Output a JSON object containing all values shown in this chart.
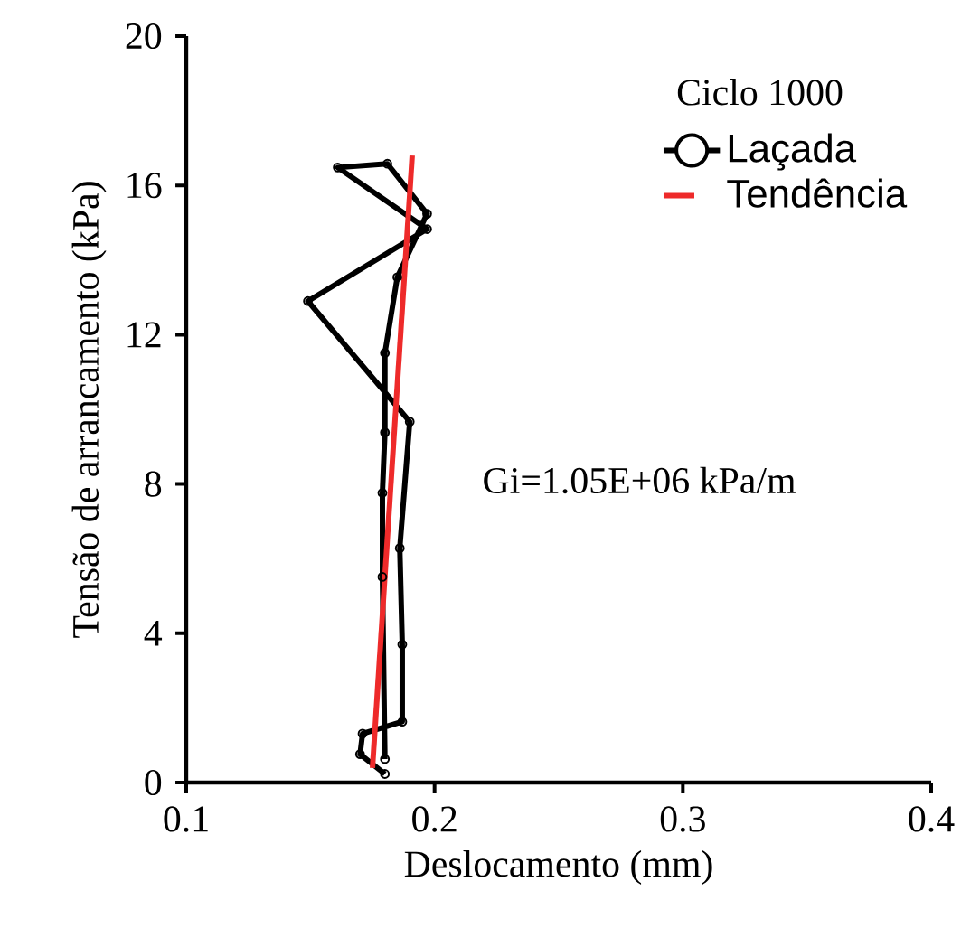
{
  "chart_data": {
    "type": "line",
    "xlabel": "Deslocamento (mm)",
    "ylabel": "Tensão de arrancamento (kPa)",
    "legend_title": "Ciclo 1000",
    "xlim": [
      0.1,
      0.4
    ],
    "xticks": [
      0.1,
      0.2,
      0.3,
      0.4
    ],
    "ylim": [
      0,
      20
    ],
    "yticks": [
      0,
      4,
      8,
      12,
      16,
      20
    ],
    "grid": false,
    "legend": "top right",
    "annotations": [
      "Gi=1.05E+06 kPa/m"
    ],
    "series": [
      {
        "name": "Laçada",
        "color": "#000000",
        "marker": "circle",
        "line_style": "solid",
        "x": [
          0.18,
          0.17,
          0.171,
          0.187,
          0.187,
          0.186,
          0.19,
          0.149,
          0.197,
          0.161,
          0.181,
          0.197,
          0.185,
          0.18,
          0.18,
          0.179,
          0.179,
          0.18
        ],
        "values": [
          0.23,
          0.76,
          1.31,
          1.63,
          3.7,
          6.28,
          9.67,
          12.9,
          14.83,
          16.48,
          16.58,
          15.24,
          13.54,
          11.51,
          9.38,
          7.76,
          5.51,
          0.63
        ]
      },
      {
        "name": "Tendência",
        "color": "#ee2a2a",
        "marker": "none",
        "line_style": "solid",
        "x": [
          0.175,
          0.191
        ],
        "values": [
          0.39,
          16.8
        ]
      }
    ]
  }
}
